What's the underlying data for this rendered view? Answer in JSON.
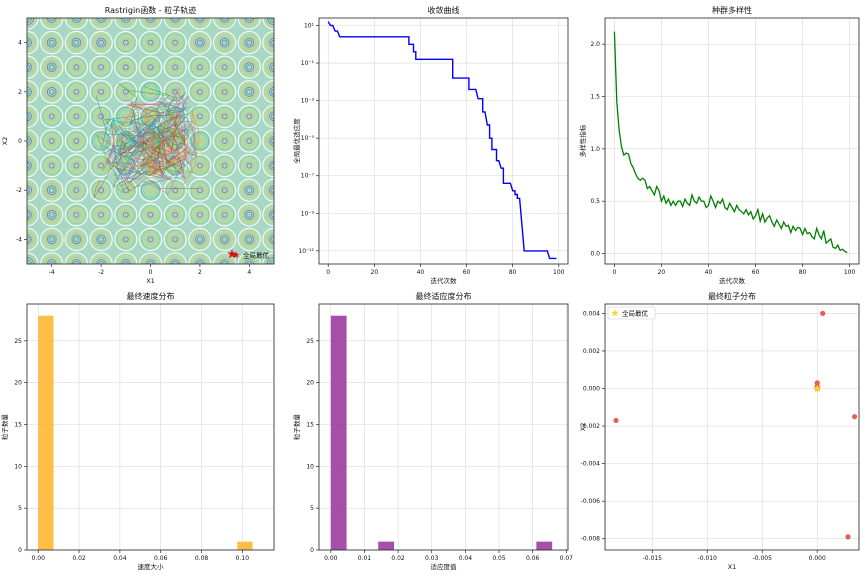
{
  "chart_data": [
    {
      "type": "contour",
      "title": "Rastrigin函数 - 粒子轨迹",
      "xlabel": "X1",
      "ylabel": "X2",
      "xlim": [
        -5,
        5
      ],
      "ylim": [
        -5,
        5
      ],
      "xticks": [
        -4,
        -2,
        0,
        2,
        4
      ],
      "yticks": [
        -4,
        -2,
        0,
        2,
        4
      ],
      "legend": {
        "label": "全局最优",
        "placement": "bottom-right"
      },
      "global_best": {
        "x": 3.3,
        "y": -4.6
      }
    },
    {
      "type": "line",
      "title": "收敛曲线",
      "xlabel": "迭代次数",
      "ylabel": "全局最优适应度",
      "yscale": "log",
      "xlim": [
        -4,
        104
      ],
      "ylim_log10": [
        -11.7,
        1.4
      ],
      "xticks": [
        0,
        20,
        40,
        60,
        80,
        100
      ],
      "ytick_exponents": [
        1,
        -1,
        -3,
        -5,
        -7,
        -9,
        -11
      ],
      "color": "#0000ff",
      "points": [
        [
          0,
          1.2
        ],
        [
          1,
          1.0
        ],
        [
          2,
          1.0
        ],
        [
          3,
          0.7
        ],
        [
          4,
          0.7
        ],
        [
          5,
          0.4
        ],
        [
          35,
          0.4
        ],
        [
          35,
          0
        ],
        [
          36,
          0
        ],
        [
          37,
          0
        ],
        [
          37,
          -0.4
        ],
        [
          38,
          -0.4
        ],
        [
          38,
          -0.8
        ],
        [
          54,
          -0.8
        ],
        [
          54,
          -1.8
        ],
        [
          61,
          -1.8
        ],
        [
          61,
          -2.4
        ],
        [
          64,
          -2.4
        ],
        [
          65,
          -2.9
        ],
        [
          67,
          -2.9
        ],
        [
          67,
          -3.6
        ],
        [
          68,
          -3.6
        ],
        [
          69,
          -4.3
        ],
        [
          70,
          -4.3
        ],
        [
          70,
          -5.0
        ],
        [
          71,
          -5.0
        ],
        [
          71,
          -5.6
        ],
        [
          73,
          -5.6
        ],
        [
          73,
          -6.2
        ],
        [
          74,
          -6.2
        ],
        [
          75,
          -6.6
        ],
        [
          76,
          -6.6
        ],
        [
          76,
          -7.4
        ],
        [
          79,
          -7.4
        ],
        [
          80,
          -7.8
        ],
        [
          81,
          -7.8
        ],
        [
          81,
          -8.0
        ],
        [
          82,
          -8.0
        ],
        [
          82,
          -8.2
        ],
        [
          83,
          -8.2
        ],
        [
          85,
          -11.0
        ],
        [
          95,
          -11.0
        ],
        [
          96,
          -11.4
        ],
        [
          99,
          -11.4
        ]
      ]
    },
    {
      "type": "line",
      "title": "种群多样性",
      "xlabel": "迭代次数",
      "ylabel": "多样性指标",
      "xlim": [
        -4,
        104
      ],
      "ylim": [
        -0.1,
        2.25
      ],
      "xticks": [
        0,
        20,
        40,
        60,
        80,
        100
      ],
      "yticks": [
        0.0,
        0.5,
        1.0,
        1.5,
        2.0
      ],
      "color": "#008000",
      "values": [
        2.12,
        1.45,
        1.18,
        1.02,
        0.94,
        0.96,
        0.95,
        0.86,
        0.82,
        0.76,
        0.72,
        0.7,
        0.72,
        0.7,
        0.62,
        0.64,
        0.6,
        0.56,
        0.64,
        0.6,
        0.5,
        0.55,
        0.48,
        0.52,
        0.46,
        0.5,
        0.46,
        0.5,
        0.5,
        0.45,
        0.52,
        0.48,
        0.46,
        0.56,
        0.5,
        0.48,
        0.54,
        0.5,
        0.5,
        0.44,
        0.46,
        0.55,
        0.5,
        0.44,
        0.5,
        0.48,
        0.52,
        0.44,
        0.42,
        0.48,
        0.44,
        0.4,
        0.46,
        0.42,
        0.4,
        0.38,
        0.42,
        0.37,
        0.4,
        0.33,
        0.36,
        0.42,
        0.31,
        0.38,
        0.3,
        0.34,
        0.36,
        0.3,
        0.26,
        0.32,
        0.28,
        0.24,
        0.3,
        0.26,
        0.27,
        0.2,
        0.26,
        0.22,
        0.25,
        0.24,
        0.18,
        0.24,
        0.19,
        0.2,
        0.16,
        0.14,
        0.24,
        0.18,
        0.14,
        0.22,
        0.1,
        0.12,
        0.14,
        0.06,
        0.05,
        0.08,
        0.03,
        0.04,
        0.02,
        0.01
      ]
    },
    {
      "type": "bar",
      "title": "最终速度分布",
      "xlabel": "速度大小",
      "ylabel": "粒子数量",
      "xlim": [
        -0.0055,
        0.1155
      ],
      "ylim": [
        0,
        29.4
      ],
      "xticks": [
        "0.00",
        "0.02",
        "0.04",
        "0.06",
        "0.08",
        "0.10"
      ],
      "xtick_values": [
        0,
        0.02,
        0.04,
        0.06,
        0.08,
        0.1
      ],
      "yticks": [
        0,
        5,
        10,
        15,
        20,
        25
      ],
      "color": "#ffb733",
      "bins": [
        [
          0,
          0.0075,
          28
        ],
        [
          0.0075,
          0.015,
          0
        ],
        [
          0.015,
          0.0225,
          0
        ],
        [
          0.0225,
          0.03,
          0
        ],
        [
          0.03,
          0.0375,
          0
        ],
        [
          0.0375,
          0.045,
          0
        ],
        [
          0.045,
          0.0525,
          0
        ],
        [
          0.0525,
          0.06,
          0
        ],
        [
          0.06,
          0.0675,
          0
        ],
        [
          0.0675,
          0.075,
          0
        ],
        [
          0.075,
          0.0825,
          0
        ],
        [
          0.0825,
          0.09,
          0
        ],
        [
          0.09,
          0.0975,
          0
        ],
        [
          0.0975,
          0.105,
          1
        ]
      ]
    },
    {
      "type": "bar",
      "title": "最终适应度分布",
      "xlabel": "适应度值",
      "ylabel": "粒子数量",
      "xlim": [
        -0.0035,
        0.0705
      ],
      "ylim": [
        0,
        29.4
      ],
      "xticks": [
        "0.00",
        "0.01",
        "0.02",
        "0.03",
        "0.04",
        "0.05",
        "0.06",
        "0.07"
      ],
      "xtick_values": [
        0,
        0.01,
        0.02,
        0.03,
        0.04,
        0.05,
        0.06,
        0.07
      ],
      "yticks": [
        0,
        5,
        10,
        15,
        20,
        25
      ],
      "color": "#9b3ca0",
      "bins": [
        [
          0,
          0.0047,
          28
        ],
        [
          0.0047,
          0.0094,
          0
        ],
        [
          0.0094,
          0.0141,
          0
        ],
        [
          0.0141,
          0.0188,
          1
        ],
        [
          0.0188,
          0.0235,
          0
        ],
        [
          0.0235,
          0.0282,
          0
        ],
        [
          0.0282,
          0.0329,
          0
        ],
        [
          0.0329,
          0.0376,
          0
        ],
        [
          0.0376,
          0.0423,
          0
        ],
        [
          0.0423,
          0.047,
          0
        ],
        [
          0.047,
          0.0517,
          0
        ],
        [
          0.0517,
          0.0564,
          0
        ],
        [
          0.0564,
          0.0611,
          0
        ],
        [
          0.0611,
          0.0658,
          1
        ]
      ]
    },
    {
      "type": "scatter",
      "title": "最终粒子分布",
      "xlabel": "X1",
      "ylabel": "X2",
      "xlim": [
        -0.0193,
        0.0038
      ],
      "ylim": [
        -0.0086,
        0.0045
      ],
      "xticks": [
        "-0.015",
        "-0.010",
        "-0.005",
        "0.000"
      ],
      "xtick_values": [
        -0.015,
        -0.01,
        -0.005,
        0.0
      ],
      "yticks": [
        "-0.008",
        "-0.006",
        "-0.004",
        "-0.002",
        "0.000",
        "0.002",
        "0.004"
      ],
      "ytick_values": [
        -0.008,
        -0.006,
        -0.004,
        -0.002,
        0.0,
        0.002,
        0.004
      ],
      "color": "#e8403a",
      "points": [
        [
          0.0005,
          0.004
        ],
        [
          0.0,
          0.0003
        ],
        [
          0.0,
          0.0
        ],
        [
          0.0,
          0.0001
        ],
        [
          -0.0183,
          -0.0017
        ],
        [
          0.0034,
          -0.0015
        ],
        [
          0.0028,
          -0.0079
        ]
      ],
      "best": {
        "x": 0.0,
        "y": 0.0,
        "color": "#ffd21f"
      },
      "legend": {
        "label": "全局最优",
        "placement": "top-left"
      }
    }
  ]
}
